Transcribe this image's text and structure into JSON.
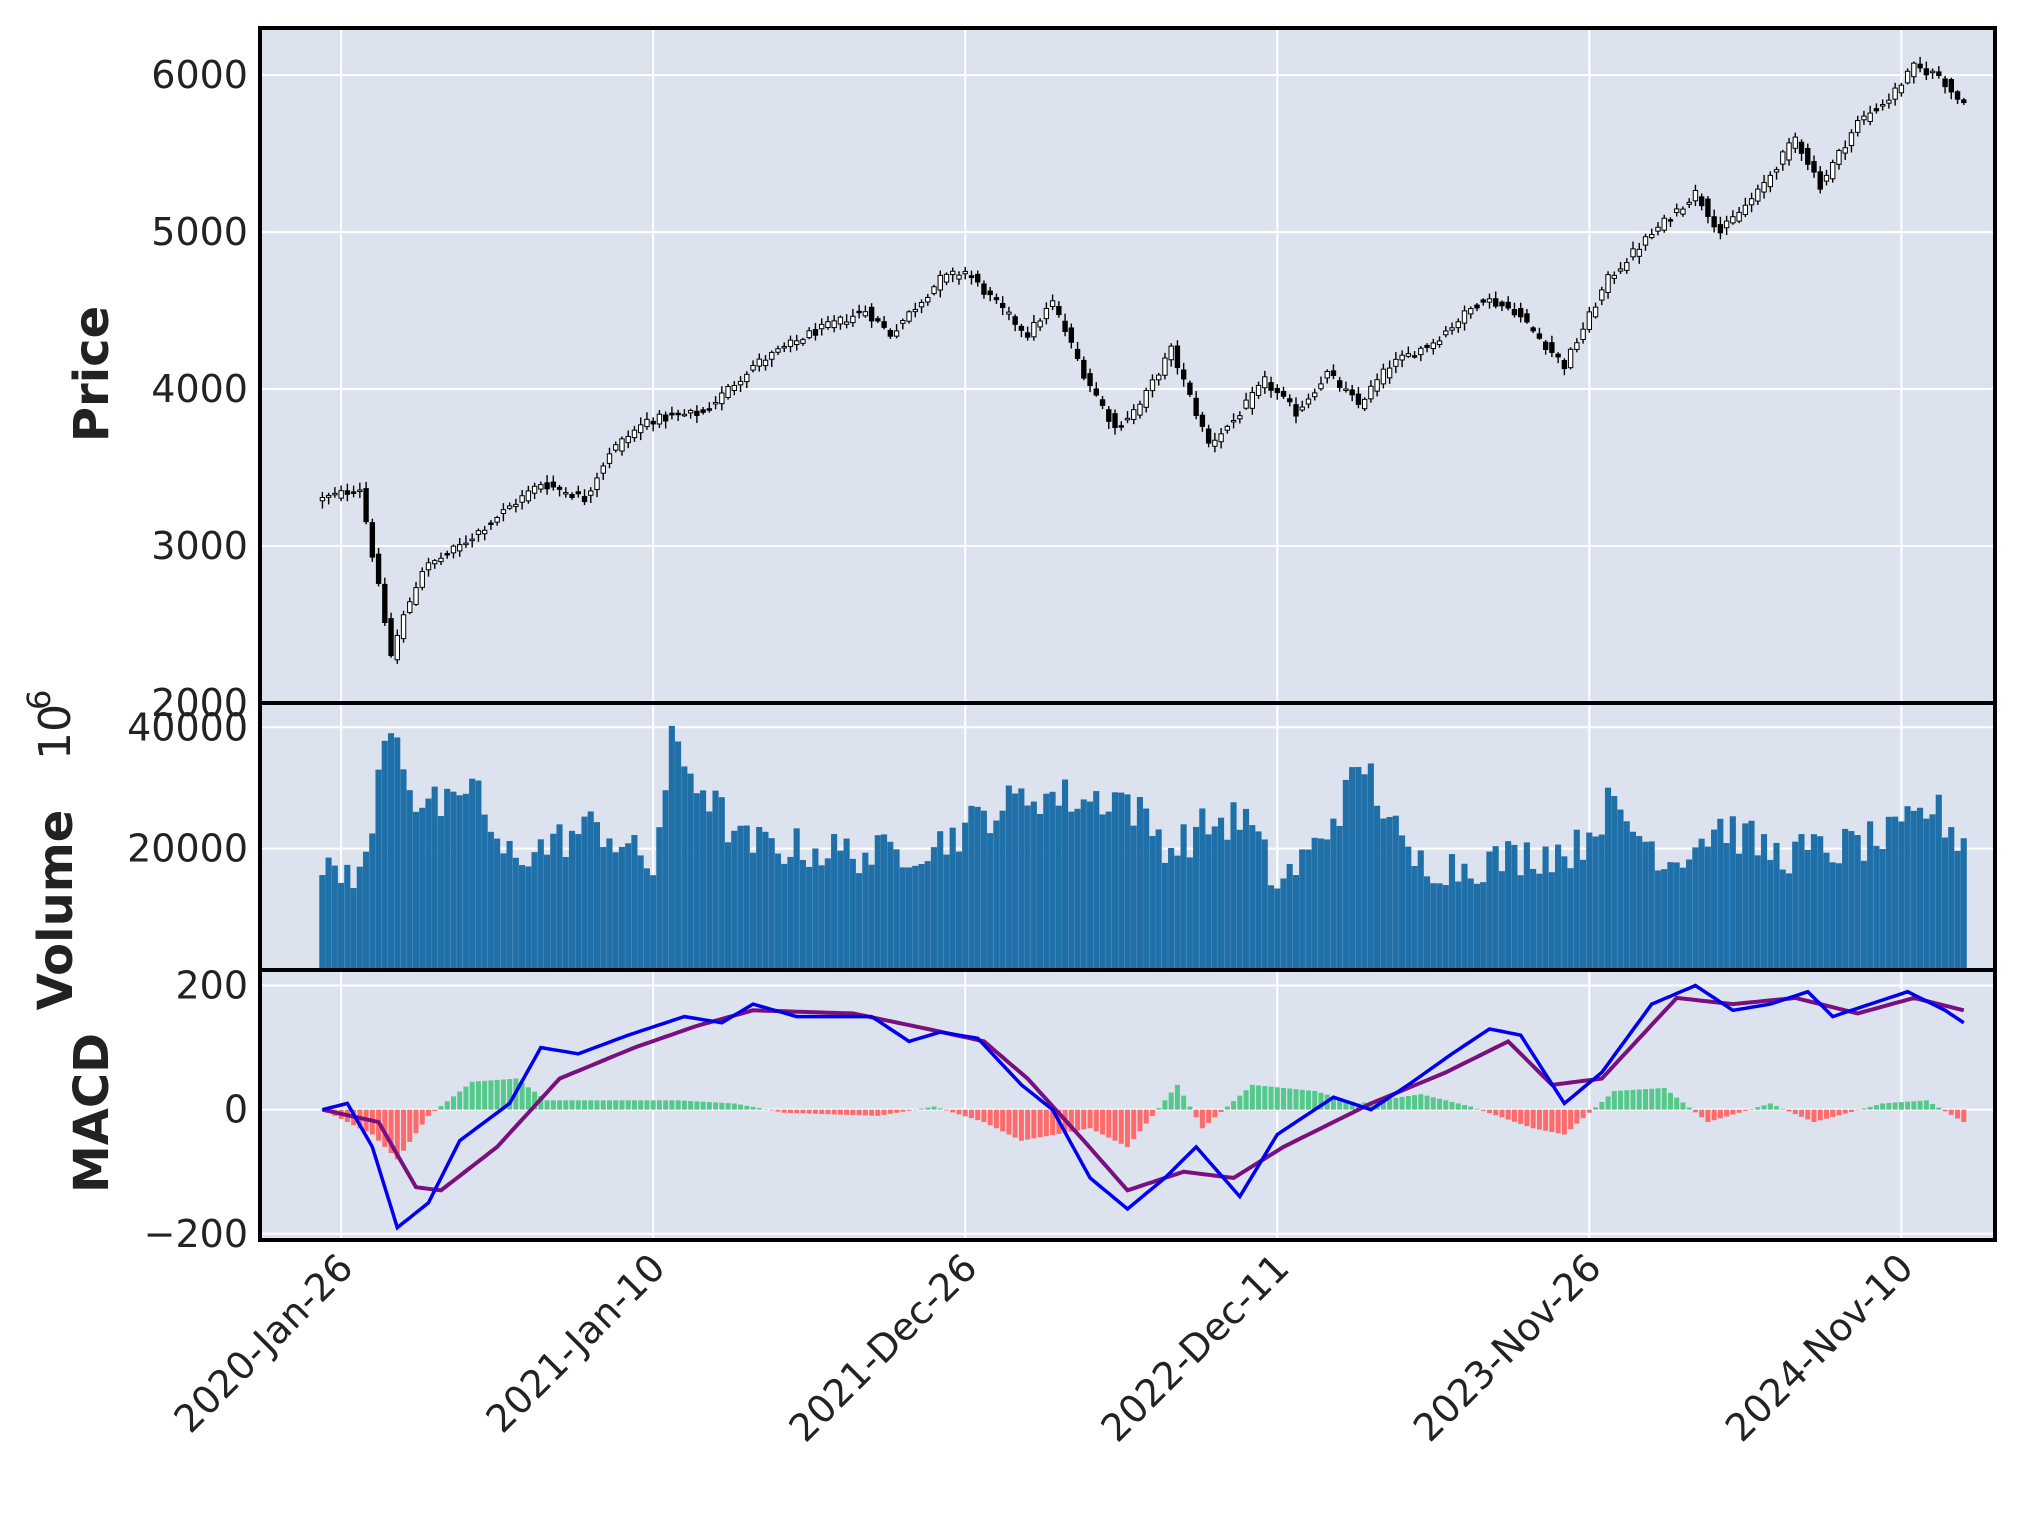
{
  "chart_data": {
    "type": "candlestick",
    "title": "",
    "x_tick_labels": [
      "2020-Jan-26",
      "2021-Jan-10",
      "2021-Dec-26",
      "2022-Dec-11",
      "2023-Nov-26",
      "2024-Nov-10"
    ],
    "x_range": [
      "2020-01-05",
      "2024-12-15"
    ],
    "colors": {
      "plot_background": "#dce3ef",
      "grid": "#ffffff",
      "candle_edge": "#000000",
      "volume_bar": "#1f6fa8",
      "macd_line": "#0000ee",
      "signal_line": "#7a1080",
      "hist_positive": "#55c98a",
      "hist_negative": "#ff6b6b"
    },
    "panels": [
      {
        "name": "price",
        "ylabel": "Price",
        "ylim": [
          2000,
          6300
        ],
        "yticks": [
          2000,
          3000,
          4000,
          5000,
          6000
        ],
        "series": [
          {
            "kind": "candlestick",
            "points": [
              [
                "2020-01-05",
                3300
              ],
              [
                "2020-02-16",
                3370
              ],
              [
                "2020-03-01",
                2950
              ],
              [
                "2020-03-22",
                2300
              ],
              [
                "2020-04-05",
                2550
              ],
              [
                "2020-04-26",
                2850
              ],
              [
                "2020-06-07",
                3000
              ],
              [
                "2020-08-02",
                3250
              ],
              [
                "2020-09-06",
                3400
              ],
              [
                "2020-10-04",
                3350
              ],
              [
                "2020-10-25",
                3300
              ],
              [
                "2020-11-22",
                3600
              ],
              [
                "2021-01-03",
                3800
              ],
              [
                "2021-03-07",
                3850
              ],
              [
                "2021-05-02",
                4150
              ],
              [
                "2021-07-04",
                4350
              ],
              [
                "2021-09-05",
                4500
              ],
              [
                "2021-10-03",
                4350
              ],
              [
                "2021-11-28",
                4700
              ],
              [
                "2021-12-26",
                4750
              ],
              [
                "2022-02-06",
                4500
              ],
              [
                "2022-03-06",
                4350
              ],
              [
                "2022-04-03",
                4550
              ],
              [
                "2022-05-08",
                4100
              ],
              [
                "2022-06-12",
                3750
              ],
              [
                "2022-07-10",
                3900
              ],
              [
                "2022-08-14",
                4250
              ],
              [
                "2022-09-25",
                3650
              ],
              [
                "2022-10-23",
                3800
              ],
              [
                "2022-11-27",
                4050
              ],
              [
                "2023-01-01",
                3850
              ],
              [
                "2023-02-05",
                4100
              ],
              [
                "2023-03-12",
                3900
              ],
              [
                "2023-04-16",
                4150
              ],
              [
                "2023-06-04",
                4300
              ],
              [
                "2023-07-30",
                4580
              ],
              [
                "2023-09-03",
                4500
              ],
              [
                "2023-10-29",
                4150
              ],
              [
                "2023-12-17",
                4700
              ],
              [
                "2024-01-28",
                4950
              ],
              [
                "2024-03-24",
                5250
              ],
              [
                "2024-04-21",
                5000
              ],
              [
                "2024-06-02",
                5250
              ],
              [
                "2024-07-14",
                5600
              ],
              [
                "2024-08-11",
                5300
              ],
              [
                "2024-09-22",
                5700
              ],
              [
                "2024-10-27",
                5850
              ],
              [
                "2024-11-24",
                6050
              ],
              [
                "2024-12-22",
                6000
              ],
              [
                "2025-01-12",
                5850
              ]
            ]
          }
        ]
      },
      {
        "name": "volume",
        "ylabel": "Volume",
        "scale_label": "10",
        "scale_exponent": "6",
        "ylim": [
          0,
          44000
        ],
        "yticks": [
          20000,
          40000
        ],
        "series": [
          {
            "kind": "bar",
            "points": [
              [
                "2020-01-05",
                15000
              ],
              [
                "2020-02-23",
                17000
              ],
              [
                "2020-03-08",
                31000
              ],
              [
                "2020-03-22",
                42000
              ],
              [
                "2020-04-19",
                28000
              ],
              [
                "2020-06-07",
                26000
              ],
              [
                "2020-06-21",
                33000
              ],
              [
                "2020-07-19",
                19000
              ],
              [
                "2020-09-06",
                20000
              ],
              [
                "2020-11-08",
                24000
              ],
              [
                "2020-12-20",
                19000
              ],
              [
                "2021-01-10",
                17000
              ],
              [
                "2021-01-31",
                37000
              ],
              [
                "2021-03-07",
                30000
              ],
              [
                "2021-04-18",
                21000
              ],
              [
                "2021-06-27",
                20000
              ],
              [
                "2021-09-19",
                19000
              ],
              [
                "2021-11-28",
                21000
              ],
              [
                "2022-01-23",
                26000
              ],
              [
                "2022-03-13",
                29000
              ],
              [
                "2022-05-15",
                28000
              ],
              [
                "2022-06-19",
                29000
              ],
              [
                "2022-08-14",
                20000
              ],
              [
                "2022-09-25",
                24000
              ],
              [
                "2022-11-06",
                25000
              ],
              [
                "2022-12-11",
                14000
              ],
              [
                "2023-01-22",
                20000
              ],
              [
                "2023-03-19",
                34000
              ],
              [
                "2023-05-07",
                18000
              ],
              [
                "2023-07-02",
                17000
              ],
              [
                "2023-09-17",
                19000
              ],
              [
                "2023-11-12",
                20000
              ],
              [
                "2023-12-17",
                27000
              ],
              [
                "2024-02-25",
                18000
              ],
              [
                "2024-04-21",
                24000
              ],
              [
                "2024-06-23",
                19000
              ],
              [
                "2024-09-01",
                20000
              ],
              [
                "2024-11-03",
                22000
              ],
              [
                "2024-12-15",
                27000
              ],
              [
                "2025-01-12",
                22000
              ]
            ]
          }
        ]
      },
      {
        "name": "macd",
        "ylabel": "MACD",
        "ylim": [
          -210,
          225
        ],
        "yticks": [
          -200,
          0,
          200
        ],
        "series": [
          {
            "name": "",
            "kind": "line",
            "points": [
              [
                "2020-01-05",
                0
              ],
              [
                "2020-02-02",
                10
              ],
              [
                "2020-03-01",
                -60
              ],
              [
                "2020-03-29",
                -190
              ],
              [
                "2020-05-03",
                -150
              ],
              [
                "2020-06-07",
                -50
              ],
              [
                "2020-08-02",
                10
              ],
              [
                "2020-09-06",
                100
              ],
              [
                "2020-10-18",
                90
              ],
              [
                "2020-12-13",
                120
              ],
              [
                "2021-02-14",
                150
              ],
              [
                "2021-03-28",
                140
              ],
              [
                "2021-05-02",
                170
              ],
              [
                "2021-06-20",
                150
              ],
              [
                "2021-08-01",
                150
              ],
              [
                "2021-09-12",
                150
              ],
              [
                "2021-10-24",
                110
              ],
              [
                "2021-11-28",
                125
              ],
              [
                "2022-01-09",
                115
              ],
              [
                "2022-02-27",
                40
              ],
              [
                "2022-04-03",
                0
              ],
              [
                "2022-05-15",
                -110
              ],
              [
                "2022-06-26",
                -160
              ],
              [
                "2022-08-07",
                -110
              ],
              [
                "2022-09-11",
                -60
              ],
              [
                "2022-10-30",
                -140
              ],
              [
                "2022-12-11",
                -40
              ],
              [
                "2023-02-12",
                20
              ],
              [
                "2023-03-26",
                0
              ],
              [
                "2023-05-07",
                40
              ],
              [
                "2023-06-25",
                90
              ],
              [
                "2023-08-06",
                130
              ],
              [
                "2023-09-10",
                120
              ],
              [
                "2023-10-29",
                10
              ],
              [
                "2023-12-10",
                60
              ],
              [
                "2024-02-04",
                170
              ],
              [
                "2024-03-24",
                200
              ],
              [
                "2024-05-05",
                160
              ],
              [
                "2024-06-16",
                170
              ],
              [
                "2024-07-28",
                190
              ],
              [
                "2024-08-25",
                150
              ],
              [
                "2024-10-06",
                170
              ],
              [
                "2024-11-17",
                190
              ],
              [
                "2024-12-29",
                160
              ],
              [
                "2025-01-19",
                140
              ]
            ]
          },
          {
            "name": "",
            "kind": "line",
            "points": [
              [
                "2020-01-05",
                0
              ],
              [
                "2020-03-08",
                -20
              ],
              [
                "2020-04-19",
                -125
              ],
              [
                "2020-05-17",
                -130
              ],
              [
                "2020-07-19",
                -60
              ],
              [
                "2020-09-27",
                50
              ],
              [
                "2020-12-20",
                100
              ],
              [
                "2021-02-28",
                135
              ],
              [
                "2021-05-02",
                160
              ],
              [
                "2021-08-22",
                155
              ],
              [
                "2021-11-14",
                130
              ],
              [
                "2022-01-16",
                110
              ],
              [
                "2022-03-06",
                50
              ],
              [
                "2022-05-08",
                -50
              ],
              [
                "2022-06-26",
                -130
              ],
              [
                "2022-08-28",
                -100
              ],
              [
                "2022-10-23",
                -110
              ],
              [
                "2022-12-18",
                -60
              ],
              [
                "2023-03-26",
                10
              ],
              [
                "2023-06-18",
                60
              ],
              [
                "2023-08-27",
                110
              ],
              [
                "2023-10-15",
                40
              ],
              [
                "2023-12-10",
                50
              ],
              [
                "2024-03-03",
                180
              ],
              [
                "2024-05-05",
                170
              ],
              [
                "2024-07-14",
                180
              ],
              [
                "2024-09-22",
                155
              ],
              [
                "2024-11-24",
                180
              ],
              [
                "2025-01-19",
                160
              ]
            ]
          },
          {
            "name": "",
            "kind": "histogram",
            "points": [
              [
                "2020-01-05",
                0
              ],
              [
                "2020-03-01",
                -40
              ],
              [
                "2020-03-29",
                -80
              ],
              [
                "2020-05-03",
                -10
              ],
              [
                "2020-06-21",
                45
              ],
              [
                "2020-08-09",
                50
              ],
              [
                "2020-09-13",
                15
              ],
              [
                "2020-11-22",
                15
              ],
              [
                "2021-02-07",
                15
              ],
              [
                "2021-04-11",
                10
              ],
              [
                "2021-06-06",
                -5
              ],
              [
                "2021-09-19",
                -10
              ],
              [
                "2021-11-21",
                5
              ],
              [
                "2022-01-16",
                -20
              ],
              [
                "2022-02-27",
                -50
              ],
              [
                "2022-05-15",
                -30
              ],
              [
                "2022-06-26",
                -60
              ],
              [
                "2022-08-21",
                40
              ],
              [
                "2022-09-18",
                -30
              ],
              [
                "2022-11-13",
                40
              ],
              [
                "2023-01-22",
                30
              ],
              [
                "2023-03-12",
                10
              ],
              [
                "2023-05-21",
                25
              ],
              [
                "2023-07-16",
                5
              ],
              [
                "2023-09-24",
                -30
              ],
              [
                "2023-10-29",
                -40
              ],
              [
                "2023-12-24",
                30
              ],
              [
                "2024-02-18",
                35
              ],
              [
                "2024-04-07",
                -20
              ],
              [
                "2024-06-16",
                10
              ],
              [
                "2024-08-04",
                -20
              ],
              [
                "2024-10-20",
                10
              ],
              [
                "2024-12-08",
                15
              ],
              [
                "2025-01-19",
                -20
              ]
            ]
          }
        ]
      }
    ]
  }
}
